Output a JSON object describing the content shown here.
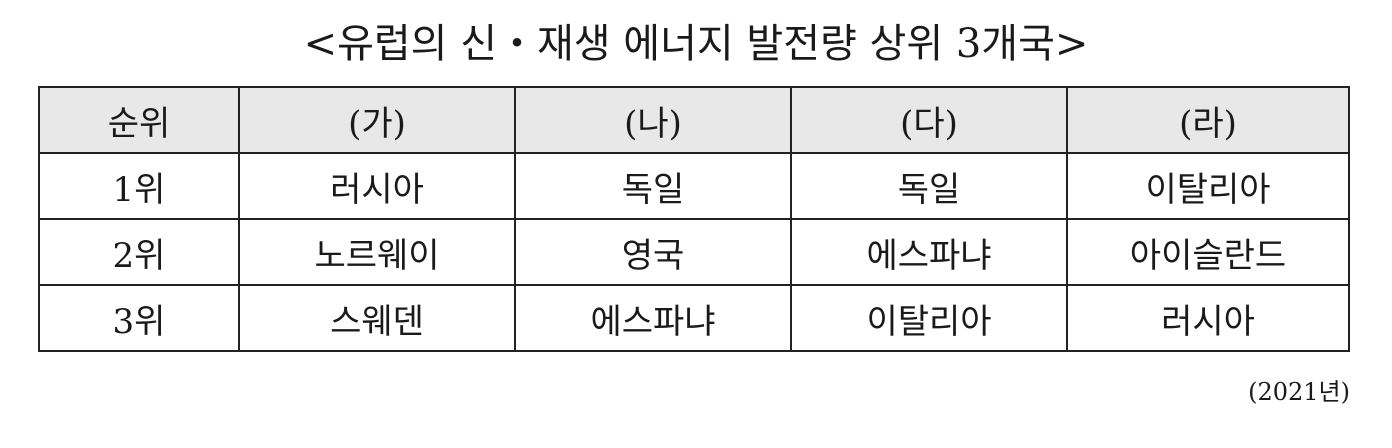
{
  "title": "<유럽의 신・재생 에너지 발전량 상위 3개국>",
  "table": {
    "headers": [
      "순위",
      "(가)",
      "(나)",
      "(다)",
      "(라)"
    ],
    "rows": [
      {
        "rank": "1위",
        "cells": [
          "러시아",
          "독일",
          "독일",
          "이탈리아"
        ]
      },
      {
        "rank": "2위",
        "cells": [
          "노르웨이",
          "영국",
          "에스파냐",
          "아이슬란드"
        ]
      },
      {
        "rank": "3위",
        "cells": [
          "스웨덴",
          "에스파냐",
          "이탈리아",
          "러시아"
        ]
      }
    ]
  },
  "footnote": "(2021년)"
}
